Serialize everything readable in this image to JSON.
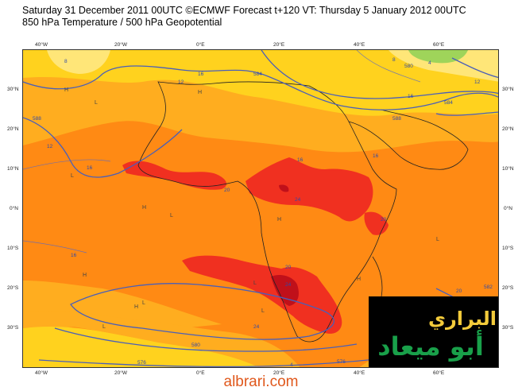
{
  "header": {
    "line1": "Saturday 31 December 2011 00UTC ©ECMWF Forecast t+120 VT: Thursday 5 January 2012 00UTC",
    "line2": "850 hPa Temperature / 500 hPa Geopotential"
  },
  "axes": {
    "top_lon": [
      "40°W",
      "20°W",
      "0°E",
      "20°E",
      "40°E",
      "60°E"
    ],
    "bottom_lon": [
      "40°W",
      "20°W",
      "0°E",
      "20°E",
      "40°E",
      "60°E"
    ],
    "left_lat": [
      "30°N",
      "20°N",
      "10°N",
      "0°N",
      "10°S",
      "20°S",
      "30°S"
    ],
    "right_lat": [
      "30°N",
      "20°N",
      "10°N",
      "0°N",
      "10°S",
      "20°S",
      "30°S"
    ]
  },
  "contour_labels": {
    "temperature": [
      "8",
      "12",
      "12",
      "16",
      "20",
      "24",
      "16",
      "20",
      "24",
      "16",
      "20",
      "24",
      "16",
      "20",
      "16",
      "12",
      "4",
      "8",
      "16",
      "4"
    ],
    "geopotential": [
      "588",
      "584",
      "588",
      "576",
      "580",
      "584",
      "582",
      "576",
      "580"
    ]
  },
  "pressure_marks": [
    "H",
    "L",
    "H",
    "L",
    "H",
    "L",
    "H",
    "H",
    "L",
    "L",
    "H",
    "L",
    "H",
    "L",
    "L"
  ],
  "logo": {
    "line1": "البراري",
    "line2": "أبو ميعاد"
  },
  "footer": {
    "site": "albrari.com"
  },
  "colors": {
    "yellow": "#ffd21e",
    "light_orange": "#ffad1f",
    "orange": "#ff8a14",
    "red": "#f03020",
    "dark_red": "#c0101a",
    "contour_blue": "#4a5fb8",
    "coast": "#222222",
    "footer_text": "#e0581c",
    "logo_bg": "#000000",
    "logo_gold": "#f3cb3b",
    "logo_green": "#19a04a"
  }
}
